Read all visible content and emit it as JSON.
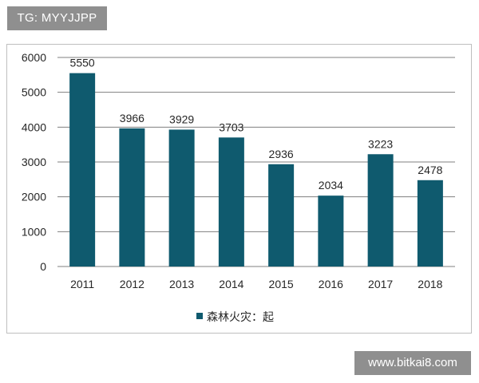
{
  "watermarks": {
    "top": "TG: MYYJJPP",
    "bottom": "www.bitkai8.com"
  },
  "colors": {
    "bar": "#0f5a6e",
    "grid": "#7f7f7f",
    "text": "#262626",
    "watermark_bg": "#8f8f8f"
  },
  "chart_data": {
    "type": "bar",
    "categories": [
      "2011",
      "2012",
      "2013",
      "2014",
      "2015",
      "2016",
      "2017",
      "2018"
    ],
    "series": [
      {
        "name": "森林火灾：起",
        "values": [
          5550,
          3966,
          3929,
          3703,
          2936,
          2034,
          3223,
          2478
        ]
      }
    ],
    "ylim": [
      0,
      6000
    ],
    "yticks": [
      0,
      1000,
      2000,
      3000,
      4000,
      5000,
      6000
    ],
    "grid": true,
    "legend_position": "bottom",
    "data_labels": true
  }
}
